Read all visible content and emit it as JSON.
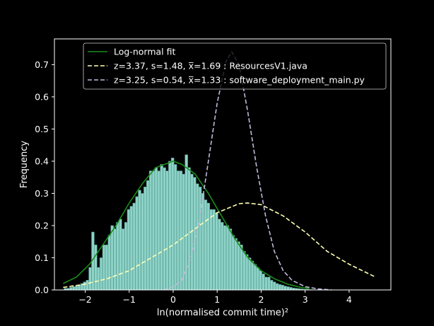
{
  "chart_data": {
    "type": "bar",
    "xlabel": "ln(normalised commit time)²",
    "ylabel": "Frequency",
    "xlim": [
      -2.7,
      4.95
    ],
    "ylim": [
      0,
      0.78
    ],
    "xticks": [
      -2,
      -1,
      0,
      1,
      2,
      3,
      4
    ],
    "yticks": [
      0.0,
      0.1,
      0.2,
      0.3,
      0.4,
      0.5,
      0.6,
      0.7
    ],
    "grid": false,
    "legend_position": "top",
    "colors": {
      "background": "#000000",
      "axes": "#ffffff",
      "histogram_fill": "#8dd3c7",
      "histogram_edge": "#4f8f86",
      "fit_line": "#1a8c1a",
      "series1_line": "#ffffb3",
      "series2_line": "#bebada"
    },
    "histogram": {
      "bin_width": 0.0625,
      "bins": [
        [
          -2.45,
          0.005
        ],
        [
          -2.3875,
          0.005
        ],
        [
          -2.325,
          0.008
        ],
        [
          -2.2625,
          0.01
        ],
        [
          -2.2,
          0.012
        ],
        [
          -2.1375,
          0.015
        ],
        [
          -2.075,
          0.02
        ],
        [
          -2.0125,
          0.025
        ],
        [
          -1.95,
          0.03
        ],
        [
          -1.8875,
          0.07
        ],
        [
          -1.825,
          0.18
        ],
        [
          -1.7625,
          0.14
        ],
        [
          -1.7,
          0.07
        ],
        [
          -1.6375,
          0.1
        ],
        [
          -1.575,
          0.14
        ],
        [
          -1.5125,
          0.14
        ],
        [
          -1.45,
          0.17
        ],
        [
          -1.3875,
          0.2
        ],
        [
          -1.325,
          0.19
        ],
        [
          -1.2625,
          0.21
        ],
        [
          -1.2,
          0.22
        ],
        [
          -1.1375,
          0.19
        ],
        [
          -1.075,
          0.21
        ],
        [
          -1.0125,
          0.25
        ],
        [
          -0.95,
          0.26
        ],
        [
          -0.8875,
          0.27
        ],
        [
          -0.825,
          0.29
        ],
        [
          -0.7625,
          0.31
        ],
        [
          -0.7,
          0.3
        ],
        [
          -0.6375,
          0.32
        ],
        [
          -0.575,
          0.34
        ],
        [
          -0.5125,
          0.37
        ],
        [
          -0.45,
          0.37
        ],
        [
          -0.3875,
          0.38
        ],
        [
          -0.325,
          0.37
        ],
        [
          -0.2625,
          0.39
        ],
        [
          -0.2,
          0.38
        ],
        [
          -0.1375,
          0.37
        ],
        [
          -0.075,
          0.4
        ],
        [
          -0.0125,
          0.41
        ],
        [
          0.05,
          0.39
        ],
        [
          0.1125,
          0.37
        ],
        [
          0.175,
          0.37
        ],
        [
          0.2375,
          0.36
        ],
        [
          0.3,
          0.42
        ],
        [
          0.3625,
          0.38
        ],
        [
          0.425,
          0.36
        ],
        [
          0.4875,
          0.35
        ],
        [
          0.55,
          0.33
        ],
        [
          0.6125,
          0.32
        ],
        [
          0.675,
          0.3
        ],
        [
          0.7375,
          0.28
        ],
        [
          0.8,
          0.27
        ],
        [
          0.8625,
          0.25
        ],
        [
          0.925,
          0.25
        ],
        [
          0.9875,
          0.24
        ],
        [
          1.05,
          0.22
        ],
        [
          1.1125,
          0.21
        ],
        [
          1.175,
          0.2
        ],
        [
          1.2375,
          0.2
        ],
        [
          1.3,
          0.19
        ],
        [
          1.3625,
          0.17
        ],
        [
          1.425,
          0.16
        ],
        [
          1.4875,
          0.15
        ],
        [
          1.55,
          0.14
        ],
        [
          1.6125,
          0.12
        ],
        [
          1.675,
          0.11
        ],
        [
          1.7375,
          0.1
        ],
        [
          1.8,
          0.09
        ],
        [
          1.8625,
          0.08
        ],
        [
          1.925,
          0.07
        ],
        [
          1.9875,
          0.06
        ],
        [
          2.05,
          0.05
        ],
        [
          2.1125,
          0.04
        ],
        [
          2.175,
          0.04
        ],
        [
          2.2375,
          0.03
        ],
        [
          2.3,
          0.025
        ],
        [
          2.3625,
          0.02
        ],
        [
          2.425,
          0.017
        ],
        [
          2.4875,
          0.015
        ],
        [
          2.55,
          0.012
        ],
        [
          2.6125,
          0.01
        ],
        [
          2.675,
          0.008
        ],
        [
          2.7375,
          0.006
        ],
        [
          2.8,
          0.005
        ],
        [
          2.8625,
          0.004
        ],
        [
          2.925,
          0.003
        ],
        [
          2.9875,
          0.002
        ],
        [
          3.05,
          0.002
        ],
        [
          3.1125,
          0.001
        ],
        [
          3.175,
          0.001
        ]
      ]
    },
    "series": [
      {
        "name": "Log-normal fit",
        "style": "solid",
        "x": [
          -2.5,
          -2.2,
          -1.9,
          -1.6,
          -1.3,
          -1.0,
          -0.7,
          -0.4,
          -0.1,
          0.0,
          0.2,
          0.5,
          0.8,
          1.1,
          1.4,
          1.7,
          2.0,
          2.3,
          2.6,
          2.9,
          3.1
        ],
        "y": [
          0.02,
          0.04,
          0.08,
          0.14,
          0.2,
          0.27,
          0.33,
          0.38,
          0.395,
          0.4,
          0.39,
          0.36,
          0.3,
          0.23,
          0.16,
          0.1,
          0.06,
          0.035,
          0.018,
          0.008,
          0.004
        ]
      },
      {
        "name": "z=3.37, s=1.48, x̅=1.69 : ResourcesV1.java",
        "style": "dashed",
        "x": [
          -2.5,
          -2.0,
          -1.5,
          -1.0,
          -0.5,
          0.0,
          0.5,
          1.0,
          1.5,
          1.69,
          2.0,
          2.5,
          3.0,
          3.5,
          4.0,
          4.6
        ],
        "y": [
          0.008,
          0.018,
          0.035,
          0.06,
          0.1,
          0.14,
          0.19,
          0.24,
          0.268,
          0.27,
          0.265,
          0.23,
          0.18,
          0.12,
          0.08,
          0.04
        ]
      },
      {
        "name": "z=3.25, s=0.54, x̅=1.33 : software_deployment_main.py",
        "style": "dashed",
        "x": [
          -0.2,
          0.0,
          0.2,
          0.4,
          0.6,
          0.8,
          1.0,
          1.2,
          1.33,
          1.5,
          1.7,
          1.9,
          2.1,
          2.3,
          2.5,
          2.7,
          3.0,
          3.3,
          3.6
        ],
        "y": [
          0.0,
          0.01,
          0.03,
          0.1,
          0.22,
          0.4,
          0.58,
          0.71,
          0.74,
          0.7,
          0.55,
          0.38,
          0.23,
          0.12,
          0.06,
          0.03,
          0.01,
          0.003,
          0.0
        ]
      }
    ]
  }
}
